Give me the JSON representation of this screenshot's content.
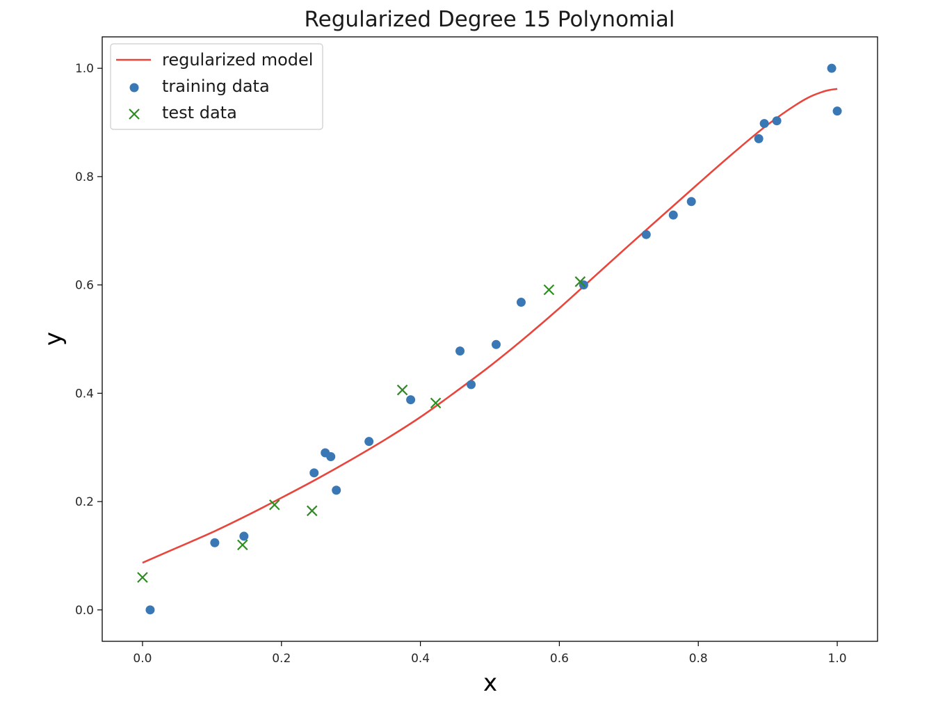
{
  "chart_data": {
    "type": "scatter",
    "title": "Regularized Degree 15 Polynomial",
    "xlabel": "x",
    "ylabel": "y",
    "xlim": [
      -0.058,
      1.058
    ],
    "ylim": [
      -0.058,
      1.058
    ],
    "xticks": [
      0.0,
      0.2,
      0.4,
      0.6,
      0.8,
      1.0
    ],
    "xtick_labels": [
      "0.0",
      "0.2",
      "0.4",
      "0.6",
      "0.8",
      "1.0"
    ],
    "yticks": [
      0.0,
      0.2,
      0.4,
      0.6,
      0.8,
      1.0
    ],
    "ytick_labels": [
      "0.0",
      "0.2",
      "0.4",
      "0.6",
      "0.8",
      "1.0"
    ],
    "grid": false,
    "legend_position": "top-left",
    "series": [
      {
        "name": "regularized model",
        "kind": "line",
        "color": "#e8453c",
        "x": [
          0.0,
          0.05,
          0.1,
          0.15,
          0.2,
          0.25,
          0.3,
          0.35,
          0.4,
          0.45,
          0.5,
          0.55,
          0.6,
          0.65,
          0.7,
          0.75,
          0.8,
          0.85,
          0.9,
          0.95,
          0.98,
          1.0
        ],
        "y": [
          0.087,
          0.115,
          0.143,
          0.174,
          0.207,
          0.241,
          0.277,
          0.315,
          0.356,
          0.402,
          0.45,
          0.502,
          0.557,
          0.615,
          0.673,
          0.73,
          0.787,
          0.843,
          0.896,
          0.94,
          0.957,
          0.962
        ]
      },
      {
        "name": "training data",
        "kind": "scatter",
        "marker": "circle",
        "color": "#3a78b5",
        "x": [
          0.011,
          0.104,
          0.146,
          0.247,
          0.263,
          0.271,
          0.279,
          0.326,
          0.386,
          0.457,
          0.473,
          0.509,
          0.545,
          0.635,
          0.725,
          0.764,
          0.79,
          0.887,
          0.895,
          0.913,
          0.992,
          1.0
        ],
        "y": [
          0.0,
          0.124,
          0.136,
          0.253,
          0.29,
          0.283,
          0.221,
          0.311,
          0.388,
          0.478,
          0.416,
          0.49,
          0.568,
          0.6,
          0.693,
          0.729,
          0.754,
          0.87,
          0.898,
          0.903,
          1.0,
          0.921
        ]
      },
      {
        "name": "test data",
        "kind": "scatter",
        "marker": "x",
        "color": "#2e8b22",
        "x": [
          0.0,
          0.144,
          0.19,
          0.244,
          0.374,
          0.422,
          0.585,
          0.63
        ],
        "y": [
          0.06,
          0.12,
          0.194,
          0.183,
          0.406,
          0.382,
          0.591,
          0.606
        ]
      }
    ]
  }
}
